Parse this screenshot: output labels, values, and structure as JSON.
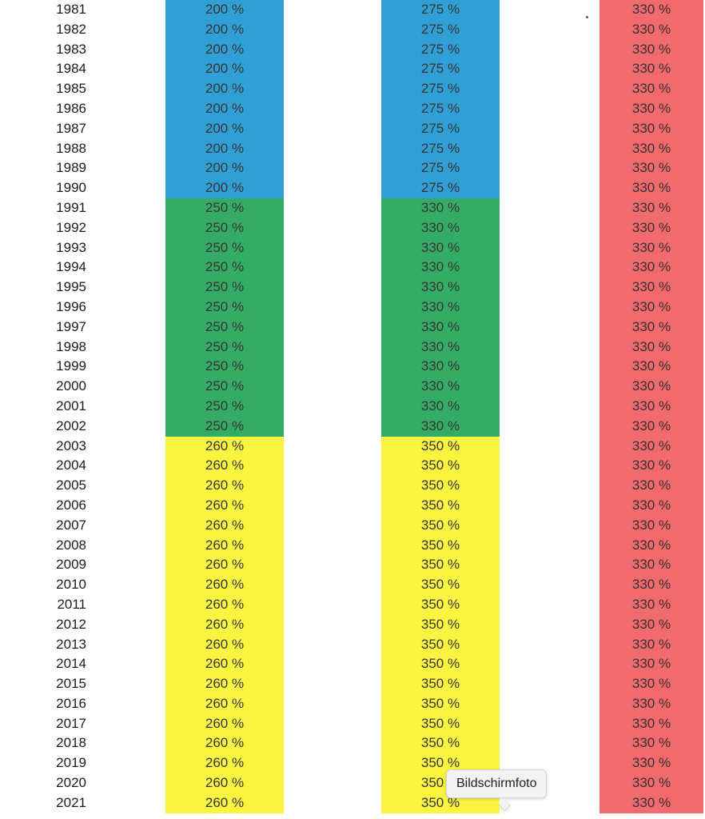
{
  "table": {
    "years": [
      "1981",
      "1982",
      "1983",
      "1984",
      "1985",
      "1986",
      "1987",
      "1988",
      "1989",
      "1990",
      "1991",
      "1992",
      "1993",
      "1994",
      "1995",
      "1996",
      "1997",
      "1998",
      "1999",
      "2000",
      "2001",
      "2002",
      "2003",
      "2004",
      "2005",
      "2006",
      "2007",
      "2008",
      "2009",
      "2010",
      "2011",
      "2012",
      "2013",
      "2014",
      "2015",
      "2016",
      "2017",
      "2018",
      "2019",
      "2020",
      "2021"
    ],
    "columns": [
      {
        "id": "col-a",
        "segments": [
          {
            "value": "200 %",
            "count": 10,
            "color": "#2f9fd6",
            "css": "c-blue"
          },
          {
            "value": "250 %",
            "count": 12,
            "color": "#35ac66",
            "css": "c-green"
          },
          {
            "value": "260 %",
            "count": 19,
            "color": "#fbf542",
            "css": "c-yellow"
          }
        ]
      },
      {
        "id": "col-b",
        "segments": [
          {
            "value": "275 %",
            "count": 10,
            "color": "#2f9fd6",
            "css": "c-blue"
          },
          {
            "value": "330 %",
            "count": 12,
            "color": "#35ac66",
            "css": "c-green"
          },
          {
            "value": "350 %",
            "count": 19,
            "color": "#fbf542",
            "css": "c-yellow"
          }
        ]
      },
      {
        "id": "col-c",
        "segments": [
          {
            "value": "330 %",
            "count": 41,
            "color": "#f06a6e",
            "css": "c-red"
          }
        ]
      }
    ]
  },
  "tooltip": {
    "label": "Bildschirmfoto"
  }
}
